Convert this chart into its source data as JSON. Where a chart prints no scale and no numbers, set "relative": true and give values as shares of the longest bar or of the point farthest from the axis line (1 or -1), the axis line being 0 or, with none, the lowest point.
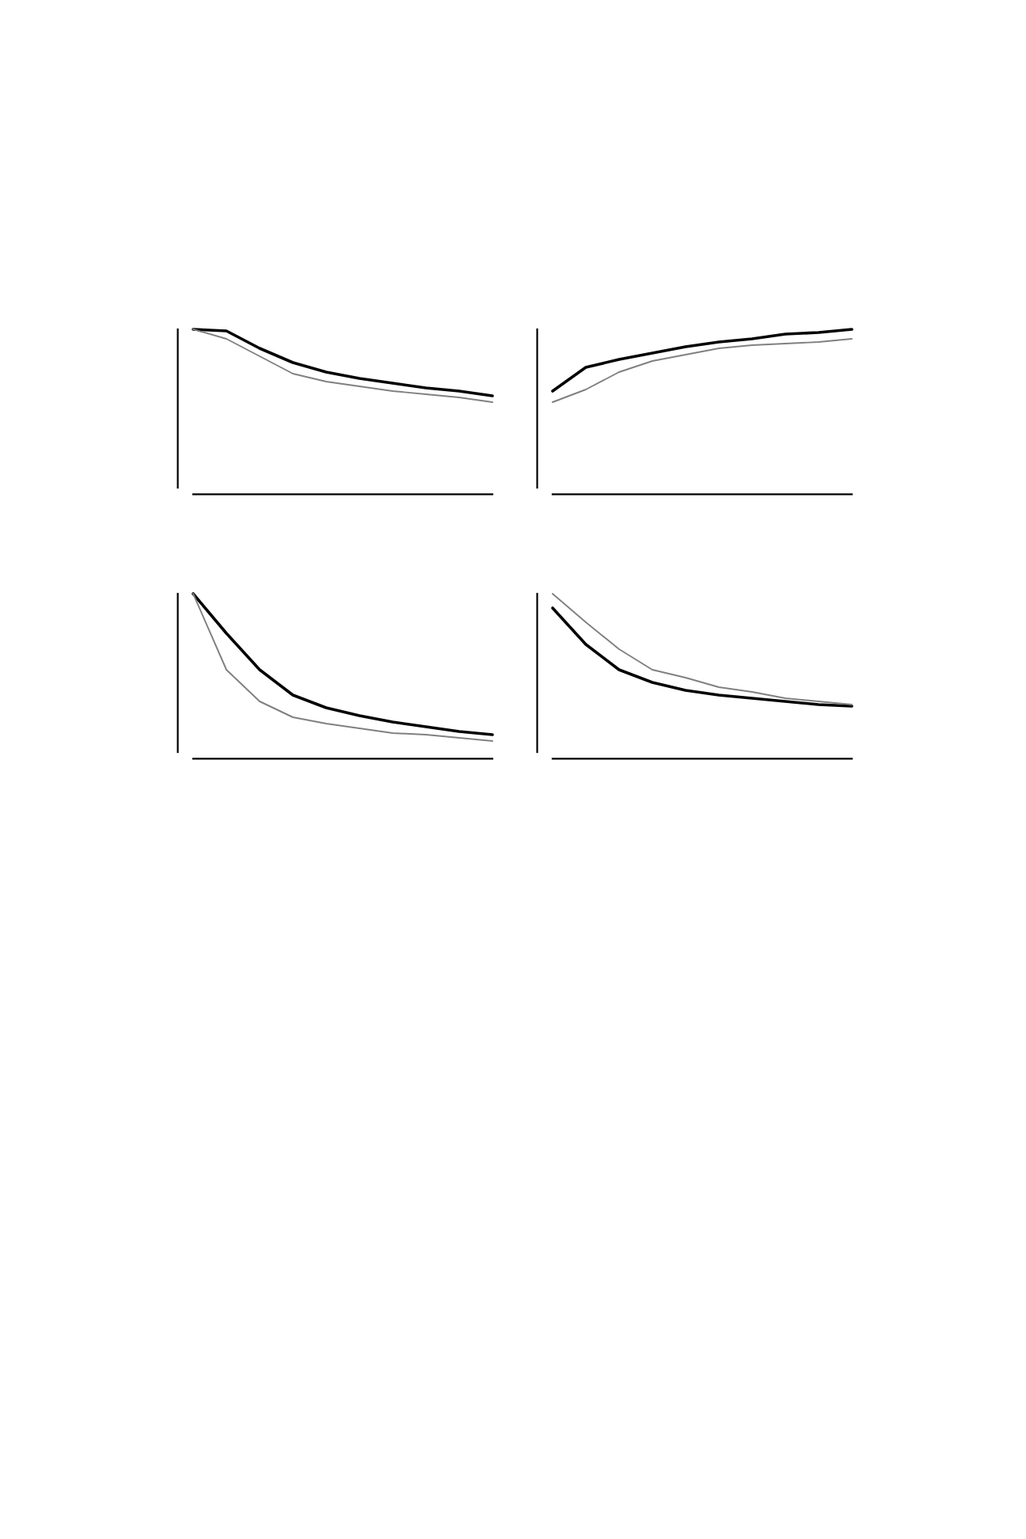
{
  "chart_data": [
    {
      "type": "line",
      "relative": true,
      "categories": [
        null,
        null,
        null,
        null,
        null,
        null,
        null,
        null,
        null,
        null
      ],
      "series": [
        {
          "color": "#000000",
          "values": [
            1.0,
            0.99,
            0.88,
            0.79,
            0.73,
            0.69,
            0.66,
            0.63,
            0.61,
            0.58
          ]
        },
        {
          "color": "#808080",
          "values": [
            1.0,
            0.94,
            0.83,
            0.72,
            0.67,
            0.64,
            0.61,
            0.59,
            0.57,
            0.54
          ]
        }
      ]
    },
    {
      "type": "line",
      "relative": true,
      "categories": [
        null,
        null,
        null,
        null,
        null,
        null,
        null,
        null,
        null,
        null
      ],
      "series": [
        {
          "color": "#000000",
          "values": [
            0.61,
            0.76,
            0.81,
            0.85,
            0.89,
            0.92,
            0.94,
            0.97,
            0.98,
            1.0
          ]
        },
        {
          "color": "#808080",
          "values": [
            0.54,
            0.62,
            0.73,
            0.8,
            0.84,
            0.88,
            0.9,
            0.91,
            0.92,
            0.94
          ]
        }
      ]
    },
    {
      "type": "line",
      "relative": true,
      "categories": [
        null,
        null,
        null,
        null,
        null,
        null,
        null,
        null,
        null,
        null
      ],
      "series": [
        {
          "color": "#000000",
          "values": [
            1.0,
            0.75,
            0.52,
            0.36,
            0.28,
            0.23,
            0.19,
            0.16,
            0.13,
            0.11
          ]
        },
        {
          "color": "#808080",
          "values": [
            1.0,
            0.52,
            0.32,
            0.22,
            0.18,
            0.15,
            0.12,
            0.11,
            0.09,
            0.07
          ]
        }
      ]
    },
    {
      "type": "line",
      "relative": true,
      "categories": [
        null,
        null,
        null,
        null,
        null,
        null,
        null,
        null,
        null,
        null
      ],
      "series": [
        {
          "color": "#000000",
          "values": [
            0.91,
            0.68,
            0.52,
            0.44,
            0.39,
            0.36,
            0.34,
            0.32,
            0.3,
            0.29
          ]
        },
        {
          "color": "#808080",
          "values": [
            1.0,
            0.82,
            0.65,
            0.52,
            0.47,
            0.41,
            0.38,
            0.34,
            0.32,
            0.3
          ]
        }
      ]
    }
  ]
}
